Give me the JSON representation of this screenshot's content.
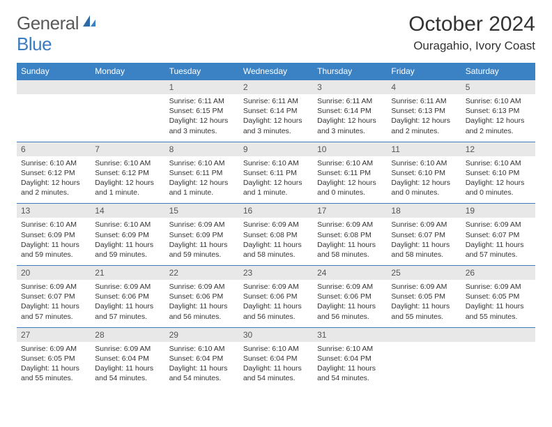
{
  "logo": {
    "part1": "General",
    "part2": "Blue"
  },
  "title": "October 2024",
  "location": "Ouragahio, Ivory Coast",
  "colors": {
    "header_bg": "#3b82c4",
    "header_text": "#ffffff",
    "border": "#3b7bbf",
    "daynum_bg": "#e8e8e8",
    "logo_gray": "#5a5a5a",
    "logo_blue": "#3b7bbf"
  },
  "day_headers": [
    "Sunday",
    "Monday",
    "Tuesday",
    "Wednesday",
    "Thursday",
    "Friday",
    "Saturday"
  ],
  "weeks": [
    [
      {
        "n": "",
        "sunrise": "",
        "sunset": "",
        "daylight": ""
      },
      {
        "n": "",
        "sunrise": "",
        "sunset": "",
        "daylight": ""
      },
      {
        "n": "1",
        "sunrise": "Sunrise: 6:11 AM",
        "sunset": "Sunset: 6:15 PM",
        "daylight": "Daylight: 12 hours and 3 minutes."
      },
      {
        "n": "2",
        "sunrise": "Sunrise: 6:11 AM",
        "sunset": "Sunset: 6:14 PM",
        "daylight": "Daylight: 12 hours and 3 minutes."
      },
      {
        "n": "3",
        "sunrise": "Sunrise: 6:11 AM",
        "sunset": "Sunset: 6:14 PM",
        "daylight": "Daylight: 12 hours and 3 minutes."
      },
      {
        "n": "4",
        "sunrise": "Sunrise: 6:11 AM",
        "sunset": "Sunset: 6:13 PM",
        "daylight": "Daylight: 12 hours and 2 minutes."
      },
      {
        "n": "5",
        "sunrise": "Sunrise: 6:10 AM",
        "sunset": "Sunset: 6:13 PM",
        "daylight": "Daylight: 12 hours and 2 minutes."
      }
    ],
    [
      {
        "n": "6",
        "sunrise": "Sunrise: 6:10 AM",
        "sunset": "Sunset: 6:12 PM",
        "daylight": "Daylight: 12 hours and 2 minutes."
      },
      {
        "n": "7",
        "sunrise": "Sunrise: 6:10 AM",
        "sunset": "Sunset: 6:12 PM",
        "daylight": "Daylight: 12 hours and 1 minute."
      },
      {
        "n": "8",
        "sunrise": "Sunrise: 6:10 AM",
        "sunset": "Sunset: 6:11 PM",
        "daylight": "Daylight: 12 hours and 1 minute."
      },
      {
        "n": "9",
        "sunrise": "Sunrise: 6:10 AM",
        "sunset": "Sunset: 6:11 PM",
        "daylight": "Daylight: 12 hours and 1 minute."
      },
      {
        "n": "10",
        "sunrise": "Sunrise: 6:10 AM",
        "sunset": "Sunset: 6:11 PM",
        "daylight": "Daylight: 12 hours and 0 minutes."
      },
      {
        "n": "11",
        "sunrise": "Sunrise: 6:10 AM",
        "sunset": "Sunset: 6:10 PM",
        "daylight": "Daylight: 12 hours and 0 minutes."
      },
      {
        "n": "12",
        "sunrise": "Sunrise: 6:10 AM",
        "sunset": "Sunset: 6:10 PM",
        "daylight": "Daylight: 12 hours and 0 minutes."
      }
    ],
    [
      {
        "n": "13",
        "sunrise": "Sunrise: 6:10 AM",
        "sunset": "Sunset: 6:09 PM",
        "daylight": "Daylight: 11 hours and 59 minutes."
      },
      {
        "n": "14",
        "sunrise": "Sunrise: 6:10 AM",
        "sunset": "Sunset: 6:09 PM",
        "daylight": "Daylight: 11 hours and 59 minutes."
      },
      {
        "n": "15",
        "sunrise": "Sunrise: 6:09 AM",
        "sunset": "Sunset: 6:09 PM",
        "daylight": "Daylight: 11 hours and 59 minutes."
      },
      {
        "n": "16",
        "sunrise": "Sunrise: 6:09 AM",
        "sunset": "Sunset: 6:08 PM",
        "daylight": "Daylight: 11 hours and 58 minutes."
      },
      {
        "n": "17",
        "sunrise": "Sunrise: 6:09 AM",
        "sunset": "Sunset: 6:08 PM",
        "daylight": "Daylight: 11 hours and 58 minutes."
      },
      {
        "n": "18",
        "sunrise": "Sunrise: 6:09 AM",
        "sunset": "Sunset: 6:07 PM",
        "daylight": "Daylight: 11 hours and 58 minutes."
      },
      {
        "n": "19",
        "sunrise": "Sunrise: 6:09 AM",
        "sunset": "Sunset: 6:07 PM",
        "daylight": "Daylight: 11 hours and 57 minutes."
      }
    ],
    [
      {
        "n": "20",
        "sunrise": "Sunrise: 6:09 AM",
        "sunset": "Sunset: 6:07 PM",
        "daylight": "Daylight: 11 hours and 57 minutes."
      },
      {
        "n": "21",
        "sunrise": "Sunrise: 6:09 AM",
        "sunset": "Sunset: 6:06 PM",
        "daylight": "Daylight: 11 hours and 57 minutes."
      },
      {
        "n": "22",
        "sunrise": "Sunrise: 6:09 AM",
        "sunset": "Sunset: 6:06 PM",
        "daylight": "Daylight: 11 hours and 56 minutes."
      },
      {
        "n": "23",
        "sunrise": "Sunrise: 6:09 AM",
        "sunset": "Sunset: 6:06 PM",
        "daylight": "Daylight: 11 hours and 56 minutes."
      },
      {
        "n": "24",
        "sunrise": "Sunrise: 6:09 AM",
        "sunset": "Sunset: 6:06 PM",
        "daylight": "Daylight: 11 hours and 56 minutes."
      },
      {
        "n": "25",
        "sunrise": "Sunrise: 6:09 AM",
        "sunset": "Sunset: 6:05 PM",
        "daylight": "Daylight: 11 hours and 55 minutes."
      },
      {
        "n": "26",
        "sunrise": "Sunrise: 6:09 AM",
        "sunset": "Sunset: 6:05 PM",
        "daylight": "Daylight: 11 hours and 55 minutes."
      }
    ],
    [
      {
        "n": "27",
        "sunrise": "Sunrise: 6:09 AM",
        "sunset": "Sunset: 6:05 PM",
        "daylight": "Daylight: 11 hours and 55 minutes."
      },
      {
        "n": "28",
        "sunrise": "Sunrise: 6:09 AM",
        "sunset": "Sunset: 6:04 PM",
        "daylight": "Daylight: 11 hours and 54 minutes."
      },
      {
        "n": "29",
        "sunrise": "Sunrise: 6:10 AM",
        "sunset": "Sunset: 6:04 PM",
        "daylight": "Daylight: 11 hours and 54 minutes."
      },
      {
        "n": "30",
        "sunrise": "Sunrise: 6:10 AM",
        "sunset": "Sunset: 6:04 PM",
        "daylight": "Daylight: 11 hours and 54 minutes."
      },
      {
        "n": "31",
        "sunrise": "Sunrise: 6:10 AM",
        "sunset": "Sunset: 6:04 PM",
        "daylight": "Daylight: 11 hours and 54 minutes."
      },
      {
        "n": "",
        "sunrise": "",
        "sunset": "",
        "daylight": ""
      },
      {
        "n": "",
        "sunrise": "",
        "sunset": "",
        "daylight": ""
      }
    ]
  ]
}
